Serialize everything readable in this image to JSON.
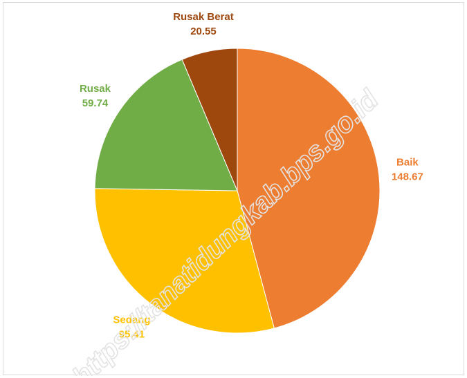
{
  "chart_data": {
    "type": "pie",
    "title": "",
    "start_angle_deg": 0,
    "direction": "clockwise",
    "slices": [
      {
        "label": "Baik",
        "value": 148.67,
        "value_text": "148.67",
        "color": "#ED7D31"
      },
      {
        "label": "Sedang",
        "value": 95.41,
        "value_text": "95.41",
        "color": "#FFC000"
      },
      {
        "label": "Rusak",
        "value": 59.74,
        "value_text": "59.74",
        "color": "#70AD47"
      },
      {
        "label": "Rusak Berat",
        "value": 20.55,
        "value_text": "20.55",
        "color": "#9E480E"
      }
    ],
    "legend": "none",
    "data_labels": "outside, category name and value"
  },
  "watermark": {
    "text": "https://tanatidungkab.bps.go.id"
  }
}
